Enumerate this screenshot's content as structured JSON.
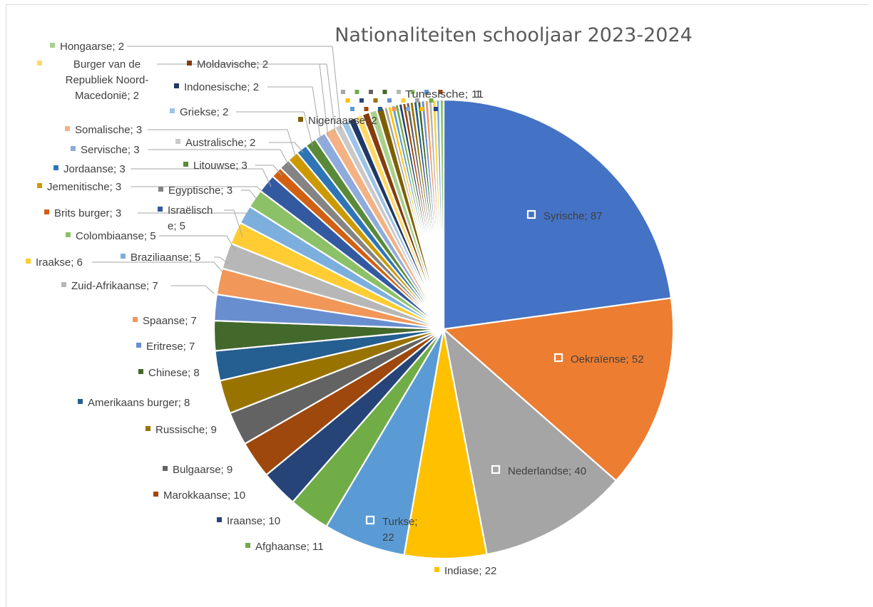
{
  "chart_data": {
    "type": "pie",
    "title": "Nationaliteiten schooljaar 2023-2024",
    "slices": [
      {
        "label": "Syrische",
        "value": 87,
        "color": "#4472c4"
      },
      {
        "label": "Oekraïense",
        "value": 52,
        "color": "#ed7d31"
      },
      {
        "label": "Nederlandse",
        "value": 40,
        "color": "#a5a5a5"
      },
      {
        "label": "Indiase",
        "value": 22,
        "color": "#ffc000"
      },
      {
        "label": "Turkse",
        "value": 22,
        "color": "#5b9bd5"
      },
      {
        "label": "Afghaanse",
        "value": 11,
        "color": "#70ad47"
      },
      {
        "label": "Iraanse",
        "value": 10,
        "color": "#264478"
      },
      {
        "label": "Marokkaanse",
        "value": 10,
        "color": "#9e480e"
      },
      {
        "label": "Bulgaarse",
        "value": 9,
        "color": "#636363"
      },
      {
        "label": "Russische",
        "value": 9,
        "color": "#997300"
      },
      {
        "label": "Amerikaans burger",
        "value": 8,
        "color": "#255e91"
      },
      {
        "label": "Chinese",
        "value": 8,
        "color": "#43682b"
      },
      {
        "label": "Eritrese",
        "value": 7,
        "color": "#698ed0"
      },
      {
        "label": "Spaanse",
        "value": 7,
        "color": "#f1975a"
      },
      {
        "label": "Zuid-Afrikaanse",
        "value": 7,
        "color": "#b7b7b7"
      },
      {
        "label": "Iraakse",
        "value": 6,
        "color": "#ffcd33"
      },
      {
        "label": "Braziliaanse",
        "value": 5,
        "color": "#7cafdd"
      },
      {
        "label": "Colombiaanse",
        "value": 5,
        "color": "#8cc168"
      },
      {
        "label": "Israëlische",
        "value": 5,
        "color": "#335aa1"
      },
      {
        "label": "Brits burger",
        "value": 3,
        "color": "#d26012"
      },
      {
        "label": "Egyptische",
        "value": 3,
        "color": "#848484"
      },
      {
        "label": "Jemenitische",
        "value": 3,
        "color": "#cc9a00"
      },
      {
        "label": "Jordaanse",
        "value": 3,
        "color": "#2e75b6"
      },
      {
        "label": "Litouwse",
        "value": 3,
        "color": "#5a8a39"
      },
      {
        "label": "Servische",
        "value": 3,
        "color": "#8faadc"
      },
      {
        "label": "Somalische",
        "value": 3,
        "color": "#f4b183"
      },
      {
        "label": "Australische",
        "value": 2,
        "color": "#c9c9c9"
      },
      {
        "label": "Griekse",
        "value": 2,
        "color": "#9dc3e6"
      },
      {
        "label": "Indonesische",
        "value": 2,
        "color": "#1f3864"
      },
      {
        "label": "Burger van de Republiek Noord-Macedonië",
        "value": 2,
        "color": "#ffd966"
      },
      {
        "label": "Moldavische",
        "value": 2,
        "color": "#843c0c"
      },
      {
        "label": "Hongaarse",
        "value": 2,
        "color": "#a9d18e"
      },
      {
        "label": "Nigeriaanse",
        "value": 2,
        "color": "#7f6000"
      }
    ],
    "tail_slices": {
      "count": 16,
      "value": 1
    },
    "partial_labels": [
      "Nigeriaanse; 2",
      "1"
    ]
  }
}
